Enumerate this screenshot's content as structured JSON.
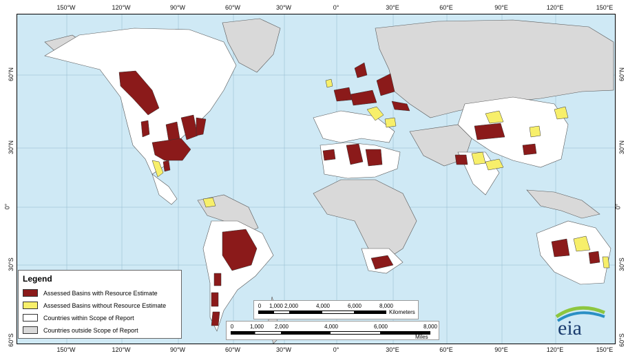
{
  "map": {
    "lon_ticks": [
      "150°W",
      "120°W",
      "90°W",
      "60°W",
      "30°W",
      "0°",
      "30°E",
      "60°E",
      "90°E",
      "120°E",
      "150°E"
    ],
    "lat_ticks": [
      "60°N",
      "30°N",
      "0°",
      "30°S",
      "60°S"
    ],
    "colors": {
      "ocean": "#cfe9f5",
      "in_scope": "#ffffff",
      "out_scope": "#d9d9d9",
      "assessed_with": "#8b1a1a",
      "assessed_without": "#f7ef6a"
    }
  },
  "legend": {
    "title": "Legend",
    "items": [
      {
        "label": "Assessed Basins with Resource Estimate",
        "color": "#8b1a1a"
      },
      {
        "label": "Assessed Basins without Resource Estimate",
        "color": "#f7ef6a"
      },
      {
        "label": "Countries within Scope of Report",
        "color": "#ffffff"
      },
      {
        "label": "Countries outside Scope of Report",
        "color": "#d9d9d9"
      }
    ]
  },
  "scale_km": {
    "ticks": [
      "0",
      "1,000",
      "2,000",
      "4,000",
      "6,000",
      "8,000"
    ],
    "unit": "Kilometers"
  },
  "scale_miles": {
    "ticks": [
      "0",
      "1,000",
      "2,000",
      "4,000",
      "6,000",
      "8,000"
    ],
    "unit": "Miles"
  },
  "logo": {
    "text": "eia"
  }
}
